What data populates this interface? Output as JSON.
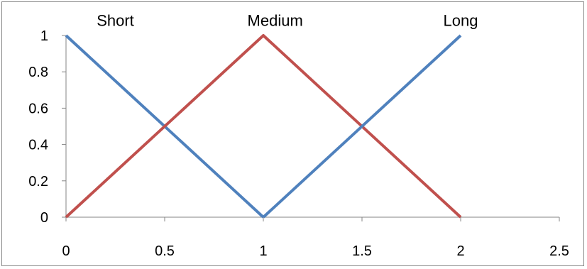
{
  "chart_data": {
    "type": "line",
    "title": "",
    "xlabel": "",
    "ylabel": "",
    "xlim": [
      0,
      2.5
    ],
    "ylim": [
      0,
      1
    ],
    "x_ticks": [
      0,
      0.5,
      1,
      1.5,
      2,
      2.5
    ],
    "x_tick_labels": [
      "0",
      "0.5",
      "1",
      "1.5",
      "2",
      "2.5"
    ],
    "y_ticks": [
      0,
      0.2,
      0.4,
      0.6,
      0.8,
      1
    ],
    "y_tick_labels": [
      "0",
      "0.2",
      "0.4",
      "0.6",
      "0.8",
      "1"
    ],
    "grid": false,
    "legend": "none",
    "series": [
      {
        "name": "Short",
        "color": "#4f81bd",
        "x": [
          0,
          1
        ],
        "y": [
          1,
          0
        ]
      },
      {
        "name": "Medium",
        "color": "#c0504d",
        "x": [
          0,
          1,
          2
        ],
        "y": [
          0,
          1,
          0
        ]
      },
      {
        "name": "Long",
        "color": "#4f81bd",
        "x": [
          1,
          2
        ],
        "y": [
          0,
          1
        ]
      }
    ],
    "annotations": [
      {
        "text": "Short",
        "x": 0.25,
        "y": 1.08
      },
      {
        "text": "Medium",
        "x": 1.06,
        "y": 1.08
      },
      {
        "text": "Long",
        "x": 2.0,
        "y": 1.08
      }
    ]
  }
}
